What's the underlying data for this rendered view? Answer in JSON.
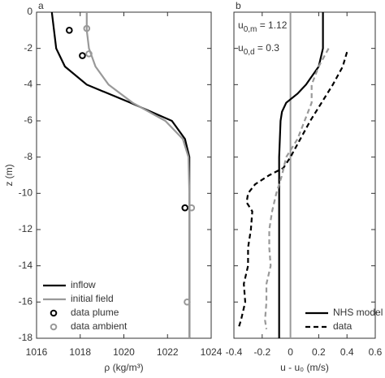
{
  "chart_data": [
    {
      "type": "line",
      "panel_label": "a",
      "xlabel": "ρ (kg/m³)",
      "ylabel": "z (m)",
      "xlim": [
        1016,
        1024
      ],
      "xticks": [
        1016,
        1018,
        1020,
        1022,
        1024
      ],
      "ylim": [
        -18,
        0
      ],
      "yticks": [
        0,
        -2,
        -4,
        -6,
        -8,
        -10,
        -12,
        -14,
        -16,
        -18
      ],
      "ytick_labels": true,
      "legend": "lower left",
      "series": [
        {
          "name": "inflow",
          "color": "#000000",
          "style": "solid",
          "x": [
            1016.7,
            1016.8,
            1016.9,
            1017.3,
            1018.3,
            1020.3,
            1022.2,
            1022.8,
            1023,
            1023,
            1023
          ],
          "y": [
            0,
            -1,
            -2,
            -3,
            -4,
            -5,
            -6,
            -7,
            -8,
            -12,
            -18
          ]
        },
        {
          "name": "initial field",
          "color": "#999999",
          "style": "solid",
          "x": [
            1018.3,
            1018.3,
            1018.4,
            1018.7,
            1019.3,
            1020.4,
            1021.9,
            1022.7,
            1022.96,
            1023,
            1023
          ],
          "y": [
            0,
            -1,
            -2,
            -3,
            -4,
            -5,
            -6,
            -7,
            -8,
            -10,
            -18
          ]
        },
        {
          "name": "data plume",
          "color": "#000000",
          "style": "markers",
          "x": [
            1017.5,
            1018.1,
            1022.8
          ],
          "y": [
            -1.0,
            -2.4,
            -10.8
          ]
        },
        {
          "name": "data ambient",
          "color": "#999999",
          "style": "markers",
          "x": [
            1018.3,
            1018.4,
            1023.1,
            1022.9
          ],
          "y": [
            -0.9,
            -2.3,
            -10.8,
            -16.0
          ]
        }
      ]
    },
    {
      "type": "line",
      "panel_label": "b",
      "xlabel": "u - u₀ (m/s)",
      "xlim": [
        -0.4,
        0.6
      ],
      "xticks": [
        -0.4,
        -0.2,
        0,
        0.2,
        0.4,
        0.6
      ],
      "ylim": [
        -18,
        0
      ],
      "yticks": [
        0,
        -2,
        -4,
        -6,
        -8,
        -10,
        -12,
        -14,
        -16,
        -18
      ],
      "ytick_labels": false,
      "legend": "lower right",
      "vline": 0,
      "vline_color": "#999999",
      "annotations": [
        {
          "symbol": "u",
          "subscript": "0,m",
          "text": " = 1.12"
        },
        {
          "symbol": "u",
          "subscript": "0,d",
          "text": " = 0.3"
        }
      ],
      "series": [
        {
          "name": "NHS model",
          "color": "#000000",
          "style": "solid",
          "x": [
            0.23,
            0.23,
            0.23,
            0.2,
            0.11,
            0.05,
            -0.03,
            -0.06,
            -0.07,
            -0.08,
            -0.08
          ],
          "y": [
            0,
            -1,
            -2,
            -3,
            -4,
            -4.5,
            -5,
            -5.5,
            -6,
            -8,
            -18
          ]
        },
        {
          "name": "data",
          "color": "#000000",
          "style": "dashed",
          "x": [
            0.4,
            0.37,
            0.3,
            0.22,
            0.14,
            0.07,
            0.0,
            -0.05,
            -0.15,
            -0.25,
            -0.3,
            -0.31,
            -0.27,
            -0.28,
            -0.3,
            -0.3,
            -0.33,
            -0.32,
            -0.35,
            -0.37
          ],
          "y": [
            -2.2,
            -3,
            -4,
            -5,
            -6,
            -7,
            -8,
            -8.6,
            -9,
            -9.5,
            -10,
            -10.5,
            -11,
            -12,
            -13,
            -14,
            -15,
            -16,
            -17,
            -17.5
          ]
        },
        {
          "color": "#999999",
          "style": "dashed",
          "x": [
            0.27,
            0.2,
            0.15,
            0.15,
            0.1,
            0.05,
            -0.03,
            -0.06,
            -0.1,
            -0.13,
            -0.15,
            -0.15,
            -0.14,
            -0.17,
            -0.17,
            -0.18,
            -0.17
          ],
          "y": [
            -2,
            -3,
            -4,
            -5,
            -6,
            -7,
            -8,
            -9,
            -10,
            -11,
            -12,
            -13,
            -14,
            -15,
            -16,
            -17,
            -17.5
          ]
        }
      ]
    }
  ]
}
